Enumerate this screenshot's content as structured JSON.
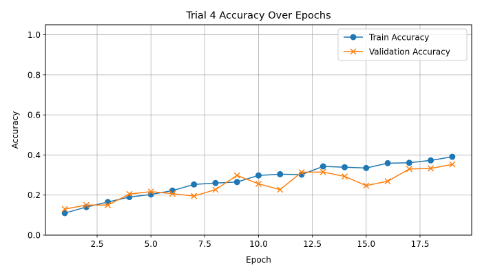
{
  "chart_data": {
    "type": "line",
    "title": "Trial 4 Accuracy Over Epochs",
    "xlabel": "Epoch",
    "ylabel": "Accuracy",
    "xlim": [
      0.1,
      19.9
    ],
    "ylim": [
      0.0,
      1.05
    ],
    "xticks": [
      2.5,
      5.0,
      7.5,
      10.0,
      12.5,
      15.0,
      17.5
    ],
    "xtick_labels": [
      "2.5",
      "5.0",
      "7.5",
      "10.0",
      "12.5",
      "15.0",
      "17.5"
    ],
    "yticks": [
      0.0,
      0.2,
      0.4,
      0.6,
      0.8,
      1.0
    ],
    "ytick_labels": [
      "0.0",
      "0.2",
      "0.4",
      "0.6",
      "0.8",
      "1.0"
    ],
    "grid": true,
    "legend_position": "top-right",
    "x": [
      1,
      2,
      3,
      4,
      5,
      6,
      7,
      8,
      9,
      10,
      11,
      12,
      13,
      14,
      15,
      16,
      17,
      18,
      19
    ],
    "series": [
      {
        "name": "Train Accuracy",
        "marker": "circle",
        "color": "#1f77b4",
        "values": [
          0.11,
          0.14,
          0.165,
          0.19,
          0.203,
          0.222,
          0.253,
          0.26,
          0.265,
          0.298,
          0.304,
          0.302,
          0.343,
          0.339,
          0.335,
          0.359,
          0.361,
          0.373,
          0.391
        ]
      },
      {
        "name": "Validation Accuracy",
        "marker": "x",
        "color": "#ff7f0e",
        "values": [
          0.13,
          0.15,
          0.15,
          0.205,
          0.217,
          0.207,
          0.195,
          0.227,
          0.298,
          0.256,
          0.227,
          0.314,
          0.315,
          0.293,
          0.247,
          0.269,
          0.33,
          0.333,
          0.353
        ]
      }
    ]
  }
}
